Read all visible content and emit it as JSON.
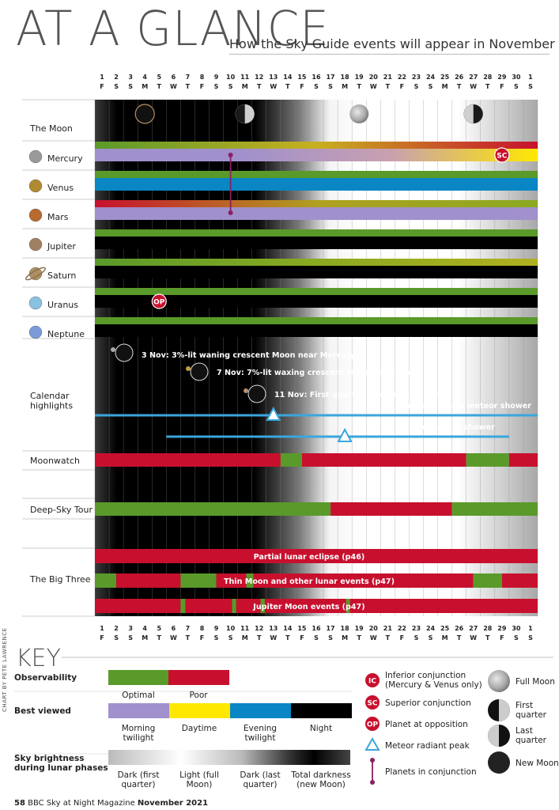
{
  "header": {
    "title": "AT A GLANCE",
    "subtitle": "How the Sky Guide events will appear in November"
  },
  "colors": {
    "optimal": "#5a9a2a",
    "poor": "#c8102e",
    "morning": "#a090cc",
    "daytime": "#ffe800",
    "evening": "#0a86c4",
    "night": "#000000",
    "event_marker": "#c8102e",
    "conjunction_line": "#8a2060",
    "meteor_line": "#3aa6dd"
  },
  "chart_data": {
    "type": "table",
    "days": [
      {
        "n": "1",
        "d": "F"
      },
      {
        "n": "2",
        "d": "S"
      },
      {
        "n": "3",
        "d": "S"
      },
      {
        "n": "4",
        "d": "M"
      },
      {
        "n": "5",
        "d": "T"
      },
      {
        "n": "6",
        "d": "W"
      },
      {
        "n": "7",
        "d": "T"
      },
      {
        "n": "8",
        "d": "F"
      },
      {
        "n": "9",
        "d": "S"
      },
      {
        "n": "10",
        "d": "S"
      },
      {
        "n": "11",
        "d": "M"
      },
      {
        "n": "12",
        "d": "T"
      },
      {
        "n": "13",
        "d": "W"
      },
      {
        "n": "14",
        "d": "T"
      },
      {
        "n": "15",
        "d": "F"
      },
      {
        "n": "16",
        "d": "S"
      },
      {
        "n": "17",
        "d": "S"
      },
      {
        "n": "18",
        "d": "M"
      },
      {
        "n": "19",
        "d": "T"
      },
      {
        "n": "20",
        "d": "W"
      },
      {
        "n": "21",
        "d": "T"
      },
      {
        "n": "22",
        "d": "F"
      },
      {
        "n": "23",
        "d": "S"
      },
      {
        "n": "24",
        "d": "S"
      },
      {
        "n": "25",
        "d": "M"
      },
      {
        "n": "26",
        "d": "T"
      },
      {
        "n": "27",
        "d": "W"
      },
      {
        "n": "28",
        "d": "T"
      },
      {
        "n": "29",
        "d": "F"
      },
      {
        "n": "30",
        "d": "S"
      },
      {
        "n": "1",
        "d": "S"
      }
    ],
    "moon_phases": [
      {
        "day": 4,
        "phase": "new"
      },
      {
        "day": 11,
        "phase": "first quarter"
      },
      {
        "day": 19,
        "phase": "full"
      },
      {
        "day": 27,
        "phase": "last quarter"
      }
    ],
    "rows": [
      {
        "label": "The Moon",
        "icon": ""
      },
      {
        "label": "Mercury",
        "icon": "mercury-icon",
        "obs": [
          {
            "from": 1,
            "to": 32,
            "grad": [
              "#5a9a2a",
              "#c8b020",
              "#c8102e"
            ]
          }
        ],
        "view": [
          {
            "from": 1,
            "to": 32,
            "grad": [
              "#a090cc",
              "#a090cc",
              "#c8a0b0",
              "#ffe800"
            ]
          }
        ],
        "markers": [
          {
            "type": "SC",
            "day": 29
          }
        ]
      },
      {
        "label": "Venus",
        "icon": "venus-icon",
        "obs": [
          {
            "from": 1,
            "to": 32,
            "grad": [
              "#5a9a2a"
            ]
          }
        ],
        "view": [
          {
            "from": 1,
            "to": 32,
            "grad": [
              "#0a86c4"
            ]
          }
        ]
      },
      {
        "label": "Mars",
        "icon": "mars-icon",
        "obs": [
          {
            "from": 1,
            "to": 32,
            "grad": [
              "#c8102e",
              "#b0a020",
              "#8aaa20"
            ]
          }
        ],
        "view": [
          {
            "from": 1,
            "to": 32,
            "grad": [
              "#a090cc"
            ]
          }
        ]
      },
      {
        "label": "Jupiter",
        "icon": "jupiter-icon",
        "obs": [
          {
            "from": 1,
            "to": 32,
            "grad": [
              "#5a9a2a"
            ]
          }
        ],
        "view": [
          {
            "from": 1,
            "to": 32,
            "grad": [
              "#000000"
            ]
          }
        ]
      },
      {
        "label": "Saturn",
        "icon": "saturn-icon",
        "obs": [
          {
            "from": 1,
            "to": 32,
            "grad": [
              "#5a9a2a",
              "#8aaa20",
              "#b0b020"
            ]
          }
        ],
        "view": [
          {
            "from": 1,
            "to": 32,
            "grad": [
              "#000000"
            ]
          }
        ]
      },
      {
        "label": "Uranus",
        "icon": "uranus-icon",
        "obs": [
          {
            "from": 1,
            "to": 32,
            "grad": [
              "#5a9a2a"
            ]
          }
        ],
        "view": [
          {
            "from": 1,
            "to": 32,
            "grad": [
              "#000000"
            ]
          }
        ],
        "markers": [
          {
            "type": "OP",
            "day": 5
          }
        ]
      },
      {
        "label": "Neptune",
        "icon": "neptune-icon",
        "obs": [
          {
            "from": 1,
            "to": 32,
            "grad": [
              "#5a9a2a"
            ]
          }
        ],
        "view": [
          {
            "from": 1,
            "to": 32,
            "grad": [
              "#000000"
            ]
          }
        ]
      }
    ],
    "conjunction": {
      "day": 10,
      "from": "Mercury",
      "to": "Mars"
    },
    "calendar": {
      "label": "Calendar highlights",
      "events": [
        {
          "day": 3,
          "text": "3 Nov: 3%-lit waning crescent Moon near Mercury"
        },
        {
          "day": 7,
          "text": "7 Nov: 7%-lit waxing crescent Moon near Venus"
        },
        {
          "day": 11,
          "text": "11 Nov: First quarter Moon near Jupiter"
        }
      ],
      "meteors": [
        {
          "name": "Northern Taurid meteor shower",
          "from": 1,
          "to": 32,
          "peak": 13
        },
        {
          "name": "Leonid meteor shower",
          "from": 6,
          "to": 30,
          "peak": 18
        }
      ]
    },
    "moonwatch": {
      "label": "Moonwatch",
      "segments": [
        {
          "from": 1,
          "to": 14,
          "c": "#c8102e"
        },
        {
          "from": 14,
          "to": 15.5,
          "c": "#5a9a2a"
        },
        {
          "from": 15.5,
          "to": 27,
          "c": "#c8102e"
        },
        {
          "from": 27,
          "to": 30,
          "c": "#5a9a2a"
        },
        {
          "from": 30,
          "to": 32,
          "c": "#c8102e"
        }
      ]
    },
    "deepsky": {
      "label": "Deep-Sky Tour",
      "segments": [
        {
          "from": 1,
          "to": 17.5,
          "c": "#5a9a2a"
        },
        {
          "from": 17.5,
          "to": 26,
          "c": "#c8102e"
        },
        {
          "from": 26,
          "to": 32,
          "c": "#5a9a2a"
        }
      ]
    },
    "bigthree": {
      "label": "The Big Three",
      "bars": [
        {
          "text": "Partial lunar eclipse (p46)",
          "segments": [
            {
              "from": 1,
              "to": 32,
              "c": "#c8102e"
            }
          ]
        },
        {
          "text": "Thin Moon and other lunar events (p47)",
          "segments": [
            {
              "from": 1,
              "to": 2.5,
              "c": "#5a9a2a"
            },
            {
              "from": 2.5,
              "to": 7,
              "c": "#c8102e"
            },
            {
              "from": 7,
              "to": 9.5,
              "c": "#5a9a2a"
            },
            {
              "from": 9.5,
              "to": 11.6,
              "c": "#c8102e"
            },
            {
              "from": 11.6,
              "to": 12.1,
              "c": "#5a9a2a"
            },
            {
              "from": 12.1,
              "to": 27.5,
              "c": "#c8102e"
            },
            {
              "from": 27.5,
              "to": 29.5,
              "c": "#5a9a2a"
            },
            {
              "from": 29.5,
              "to": 32,
              "c": "#c8102e"
            }
          ]
        },
        {
          "text": "Jupiter Moon events (p47)",
          "segments": [
            {
              "from": 1,
              "to": 7,
              "c": "#c8102e"
            },
            {
              "from": 7,
              "to": 7.35,
              "c": "#5a9a2a"
            },
            {
              "from": 7.35,
              "to": 10.6,
              "c": "#c8102e"
            },
            {
              "from": 10.6,
              "to": 10.9,
              "c": "#5a9a2a"
            },
            {
              "from": 10.9,
              "to": 12.6,
              "c": "#c8102e"
            },
            {
              "from": 12.6,
              "to": 12.9,
              "c": "#5a9a2a"
            },
            {
              "from": 12.9,
              "to": 18.6,
              "c": "#c8102e"
            },
            {
              "from": 18.6,
              "to": 18.85,
              "c": "#5a9a2a"
            },
            {
              "from": 18.85,
              "to": 32,
              "c": "#c8102e"
            }
          ]
        }
      ]
    }
  },
  "key": {
    "title": "KEY",
    "observability": {
      "label": "Observability",
      "items": [
        "Optimal",
        "Poor"
      ]
    },
    "best_viewed": {
      "label": "Best viewed",
      "items": [
        "Morning\ntwilight",
        "Daytime",
        "Evening\ntwilight",
        "Night"
      ]
    },
    "sky": {
      "label": "Sky brightness\nduring lunar phases",
      "items": [
        "Dark (first\nquarter)",
        "Light (full\nMoon)",
        "Dark (last\nquarter)",
        "Total darkness\n(new Moon)"
      ]
    },
    "symbols": [
      {
        "badge": "IC",
        "text": "Inferior conjunction\n(Mercury & Venus only)"
      },
      {
        "badge": "SC",
        "text": "Superior conjunction"
      },
      {
        "badge": "OP",
        "text": "Planet at opposition"
      },
      {
        "badge": "tri",
        "text": "Meteor radiant peak"
      },
      {
        "badge": "line",
        "text": "Planets in conjunction"
      }
    ],
    "phases": [
      {
        "phase": "full",
        "text": "Full Moon"
      },
      {
        "phase": "first",
        "text": "First\nquarter"
      },
      {
        "phase": "last",
        "text": "Last\nquarter"
      },
      {
        "phase": "new",
        "text": "New Moon"
      }
    ]
  },
  "footer": {
    "page": "58",
    "pub": "BBC Sky at Night Magazine",
    "issue": "November 2021"
  },
  "credit": "CHART BY PETE LAWRENCE"
}
